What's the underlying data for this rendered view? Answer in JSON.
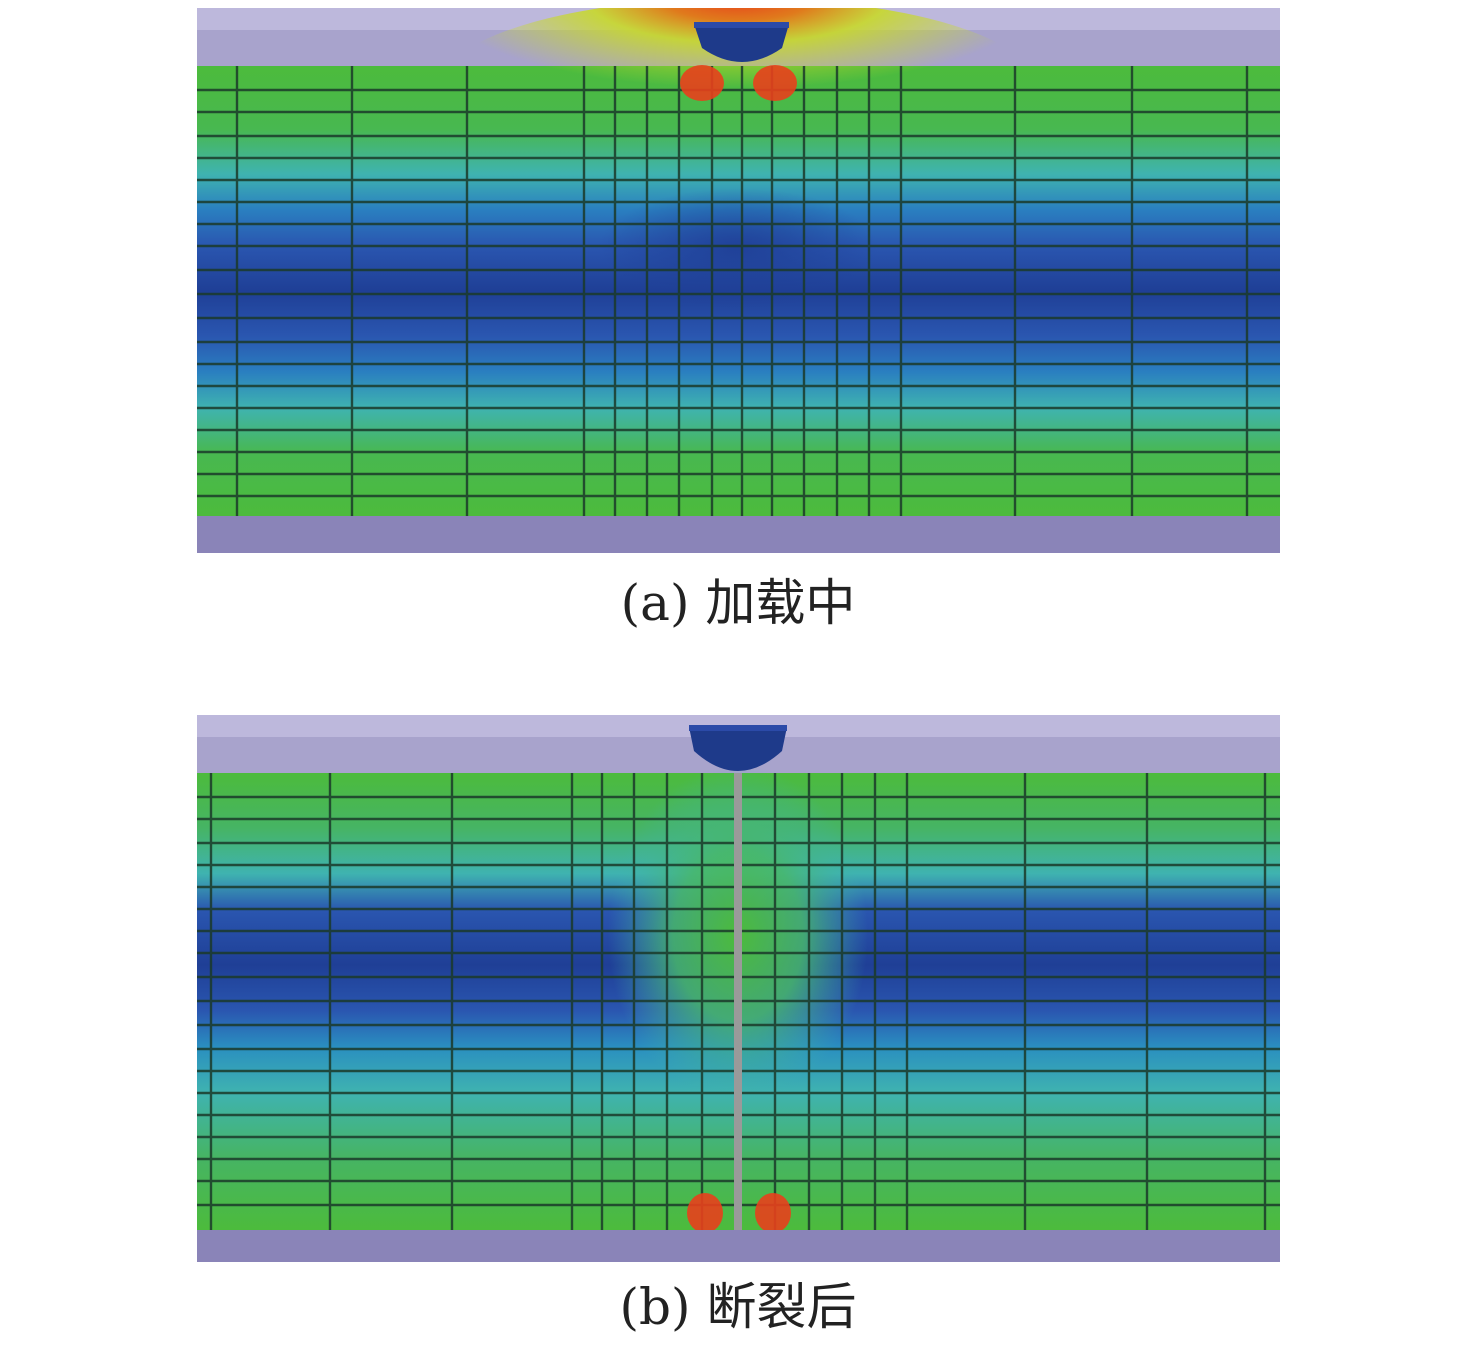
{
  "panels": [
    {
      "id": "a",
      "caption": "(a) 加载中",
      "colors": {
        "plate": "#a8a3cc",
        "plate_bottom": "#8a84b8",
        "indenter": "#1e3a8a",
        "hot": "#e8401c",
        "mid": "#c8d92a",
        "green": "#4cbb3c",
        "cyan": "#3fb3b0",
        "blue": "#2a56b0",
        "deep": "#1f3f96",
        "grid": "#1b3a2a"
      }
    },
    {
      "id": "b",
      "caption": "(b) 断裂后",
      "colors": {
        "plate": "#a8a3cc",
        "plate_bottom": "#8a84b8",
        "indenter": "#1e3a8a",
        "hot": "#e8401c",
        "mid": "#c8d92a",
        "green": "#4cbb3c",
        "cyan": "#3fb3b0",
        "blue": "#2a56b0",
        "deep": "#1f3f96",
        "grid": "#1b3a2a",
        "crack": "#9a9a9a"
      }
    }
  ]
}
